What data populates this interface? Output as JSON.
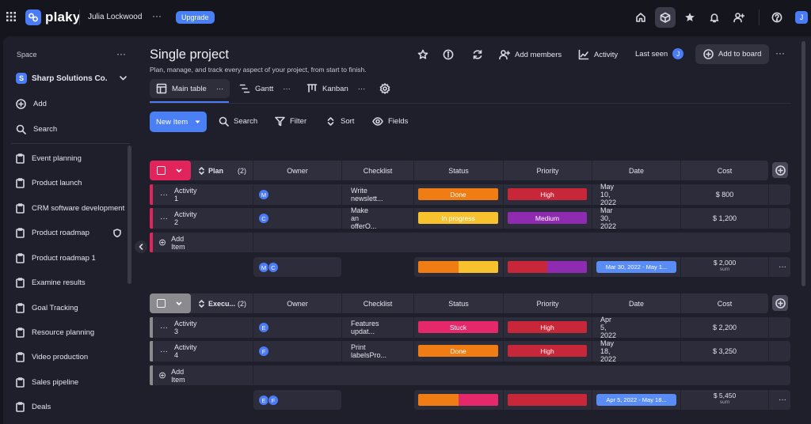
{
  "topbar": {
    "app_name": "plaky",
    "user_name": "Julia Lockwood",
    "more": "···",
    "upgrade_label": "Upgrade",
    "avatar_initial": "J",
    "icons": [
      "apps-grid-icon",
      "home-icon",
      "cube-icon",
      "star-icon",
      "bell-icon",
      "add-user-icon",
      "help-icon"
    ],
    "accent": "#4b7bf5"
  },
  "sidebar": {
    "section_label": "Space",
    "more": "···",
    "workspace_initial": "S",
    "workspace_name": "Sharp Solutions Co.",
    "add_label": "Add",
    "search_label": "Search",
    "items": [
      {
        "label": "Event planning"
      },
      {
        "label": "Product launch"
      },
      {
        "label": "CRM software development"
      },
      {
        "label": "Product roadmap"
      },
      {
        "label": "Product roadmap 1"
      },
      {
        "label": "Examine results"
      },
      {
        "label": "Goal Tracking"
      },
      {
        "label": "Resource planning"
      },
      {
        "label": "Video production"
      },
      {
        "label": "Sales pipeline"
      },
      {
        "label": "Deals"
      }
    ]
  },
  "board": {
    "title": "Single project",
    "subtitle": "Plan, manage, and track every aspect of your project, from start to finish.",
    "add_members_label": "Add members",
    "activity_label": "Activity",
    "last_seen_label": "Last seen",
    "last_seen_initial": "J",
    "add_to_board_label": "Add to board",
    "more": "···",
    "tabs": [
      {
        "label": "Main table"
      },
      {
        "label": "Gantt"
      },
      {
        "label": "Kanban"
      }
    ],
    "toolbar": {
      "new_item_label": "New Item",
      "search_label": "Search",
      "filter_label": "Filter",
      "sort_label": "Sort",
      "fields_label": "Fields"
    }
  },
  "columns": {
    "owner": "Owner",
    "checklist": "Checklist",
    "status": "Status",
    "priority": "Priority",
    "date": "Date",
    "cost": "Cost"
  },
  "groups": [
    {
      "name": "Plan",
      "count": "(2)",
      "color": "#e2245c",
      "rows": [
        {
          "name": "Activity 1",
          "owner": "M",
          "checklist": "Write newslett...",
          "status": "Done",
          "status_color": "#f07d14",
          "priority": "High",
          "priority_color": "#c8273a",
          "date": "May 10, 2022",
          "cost": "$ 800"
        },
        {
          "name": "Activity 2",
          "owner": "C",
          "checklist": "Make an offerO...",
          "status": "In progress",
          "status_color": "#f8c12e",
          "priority": "Medium",
          "priority_color": "#8e2bb0",
          "date": "Mar 30, 2022",
          "cost": "$ 1,200"
        }
      ],
      "add_item_label": "Add Item",
      "summary": {
        "owners": [
          "M",
          "C"
        ],
        "date_range": "Mar 30, 2022 - May 1...",
        "cost_sum": "$ 2,000",
        "cost_sum_label": "sum"
      }
    },
    {
      "name": "Execu...",
      "count": "(2)",
      "color": "#8b8b8f",
      "rows": [
        {
          "name": "Activity 3",
          "owner": "E",
          "checklist": "Features updat...",
          "status": "Stuck",
          "status_color": "#e4286a",
          "priority": "High",
          "priority_color": "#c8273a",
          "date": "Apr 5, 2022",
          "cost": "$ 2,200"
        },
        {
          "name": "Activity 4",
          "owner": "F",
          "checklist": "Print labelsPro...",
          "status": "Done",
          "status_color": "#f07d14",
          "priority": "High",
          "priority_color": "#c8273a",
          "date": "May 18, 2022",
          "cost": "$ 3,250"
        }
      ],
      "add_item_label": "Add Item",
      "summary": {
        "owners": [
          "E",
          "F"
        ],
        "date_range": "Apr 5, 2022 - May 18...",
        "cost_sum": "$ 5,450",
        "cost_sum_label": "sum"
      }
    }
  ]
}
